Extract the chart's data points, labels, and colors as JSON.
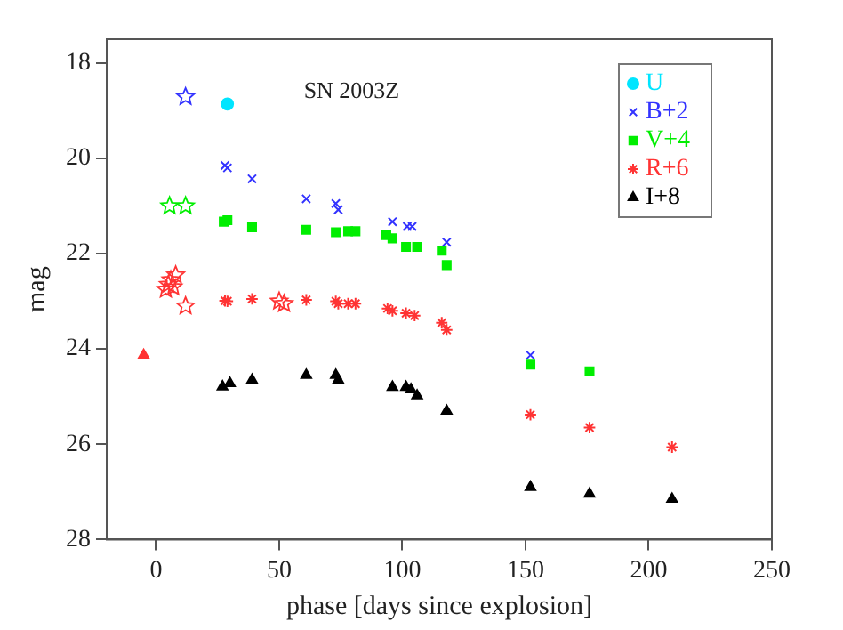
{
  "chart_data": {
    "type": "scatter",
    "title": "SN 2003Z",
    "xlabel": "phase [days since explosion]",
    "ylabel": "mag",
    "xlim": [
      -20,
      250
    ],
    "xticks": [
      0,
      50,
      100,
      150,
      200,
      250
    ],
    "ylim": [
      28,
      17.5
    ],
    "yticks": [
      18,
      20,
      22,
      24,
      26,
      28
    ],
    "grid": false,
    "legend": "top right",
    "series": [
      {
        "name": "U",
        "color": "#00e5ff",
        "marker": "circle",
        "x": [
          29
        ],
        "values": [
          18.86
        ]
      },
      {
        "name": "B+2",
        "color": "#3333ff",
        "marker": "cross",
        "x": [
          28,
          29,
          39,
          61,
          73,
          74,
          96,
          102,
          104,
          118,
          152
        ],
        "values": [
          20.15,
          20.2,
          20.43,
          20.85,
          20.95,
          21.08,
          21.33,
          21.43,
          21.43,
          21.76,
          24.13
        ]
      },
      {
        "name": "V+4",
        "color": "#00ee00",
        "marker": "square",
        "x": [
          27.5,
          29,
          39,
          61,
          73,
          78,
          81,
          93.5,
          96,
          101.5,
          106,
          116,
          118,
          152,
          176
        ],
        "values": [
          21.33,
          21.3,
          21.45,
          21.5,
          21.55,
          21.53,
          21.53,
          21.61,
          21.68,
          21.86,
          21.86,
          21.94,
          22.24,
          24.33,
          24.47
        ]
      },
      {
        "name": "R+6",
        "color": "#ff3333",
        "marker": "cross",
        "x": [
          28,
          29,
          39,
          61,
          73,
          74,
          78,
          81,
          94,
          96,
          101.5,
          105,
          116,
          118,
          152,
          176,
          209.5
        ],
        "values": [
          22.99,
          23.0,
          22.95,
          22.97,
          23.0,
          23.05,
          23.05,
          23.05,
          23.15,
          23.2,
          23.25,
          23.3,
          23.45,
          23.6,
          25.38,
          25.65,
          26.06
        ]
      },
      {
        "name": "I+8",
        "color": "#000000",
        "marker": "triangle",
        "x": [
          27,
          30,
          39,
          61,
          73,
          74,
          96,
          101.5,
          103.5,
          106,
          118,
          152,
          176,
          209.5
        ],
        "values": [
          24.79,
          24.72,
          24.65,
          24.55,
          24.55,
          24.65,
          24.8,
          24.8,
          24.85,
          24.98,
          25.3,
          26.9,
          27.04,
          27.15
        ]
      },
      {
        "color": "#3333ff",
        "marker": "star",
        "x": [
          12
        ],
        "values": [
          18.71
        ]
      },
      {
        "color": "#00ee00",
        "marker": "star",
        "x": [
          5.5,
          12
        ],
        "values": [
          21.0,
          21.0
        ]
      },
      {
        "color": "#ff3333",
        "marker": "star",
        "x": [
          4,
          5,
          6,
          7,
          8,
          12,
          50,
          52
        ],
        "values": [
          22.75,
          22.65,
          22.55,
          22.7,
          22.45,
          23.1,
          23.0,
          23.05
        ]
      },
      {
        "color": "#ff3333",
        "marker": "triangle",
        "x": [
          -5
        ],
        "values": [
          24.13
        ]
      }
    ]
  }
}
